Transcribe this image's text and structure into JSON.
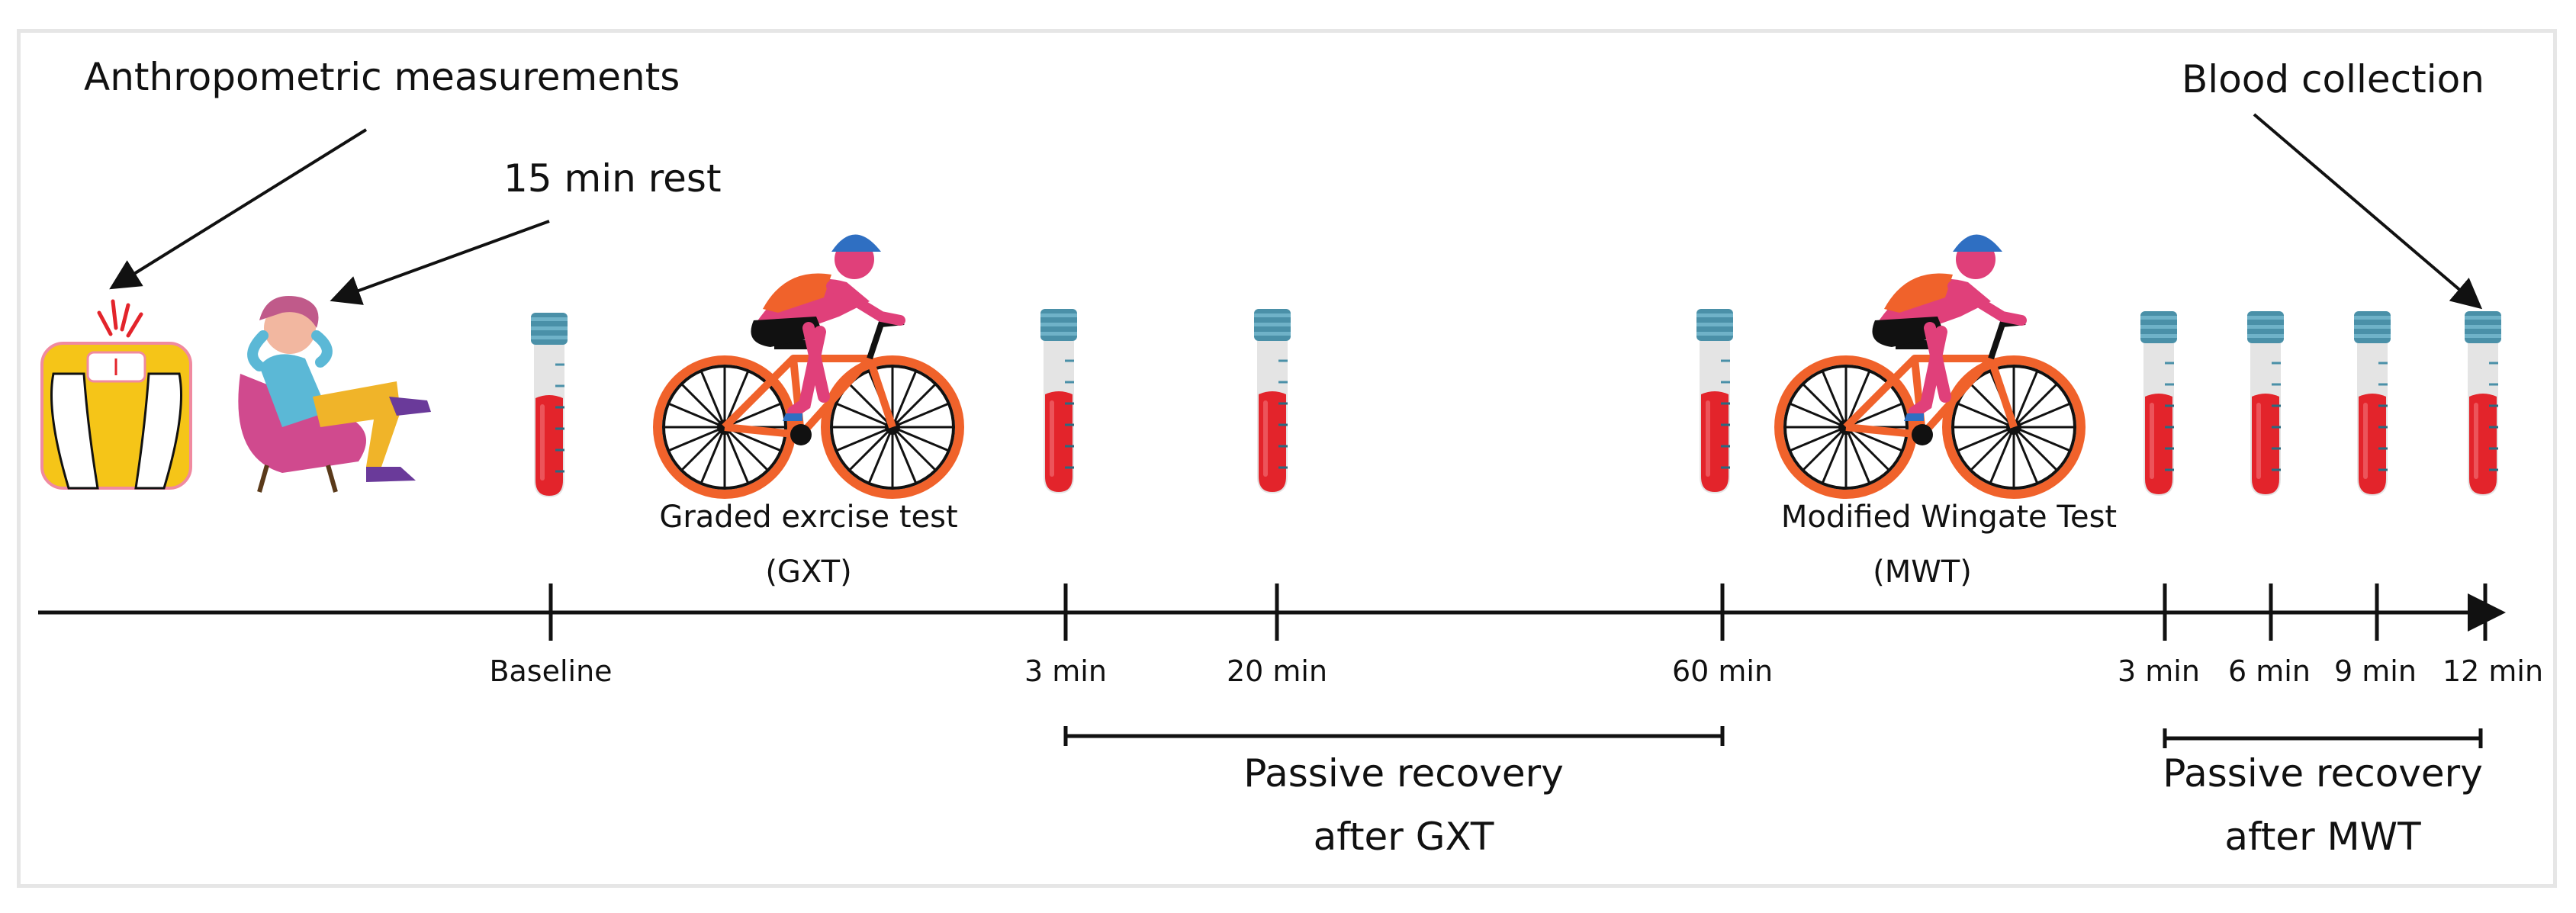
{
  "annotations": {
    "anthropometric": "Anthropometric measurements",
    "rest": "15 min rest",
    "blood": "Blood collection"
  },
  "tests": {
    "gxt_name": "Graded exrcise test",
    "gxt_abbr": "(GXT)",
    "mwt_name": "Modified Wingate Test",
    "mwt_abbr": "(MWT)"
  },
  "timeline": {
    "ticks": [
      "Baseline",
      "3 min",
      "20 min",
      "60 min",
      "3 min",
      "6 min",
      "9 min",
      "12 min"
    ]
  },
  "recovery": {
    "gxt_line1": "Passive recovery",
    "gxt_line2": "after GXT",
    "mwt_line1": "Passive recovery",
    "mwt_line2": "after MWT"
  },
  "colors": {
    "blood": "#e3242b",
    "tube_cap": "#4a90a8",
    "scale": "#f5c518",
    "bike_frame": "#f0622b",
    "rider_jersey": "#e0407a",
    "helmet": "#2f6fc2"
  },
  "icons": [
    "weighing-scale-icon",
    "resting-person-icon",
    "blood-tube-icon",
    "cyclist-icon"
  ]
}
